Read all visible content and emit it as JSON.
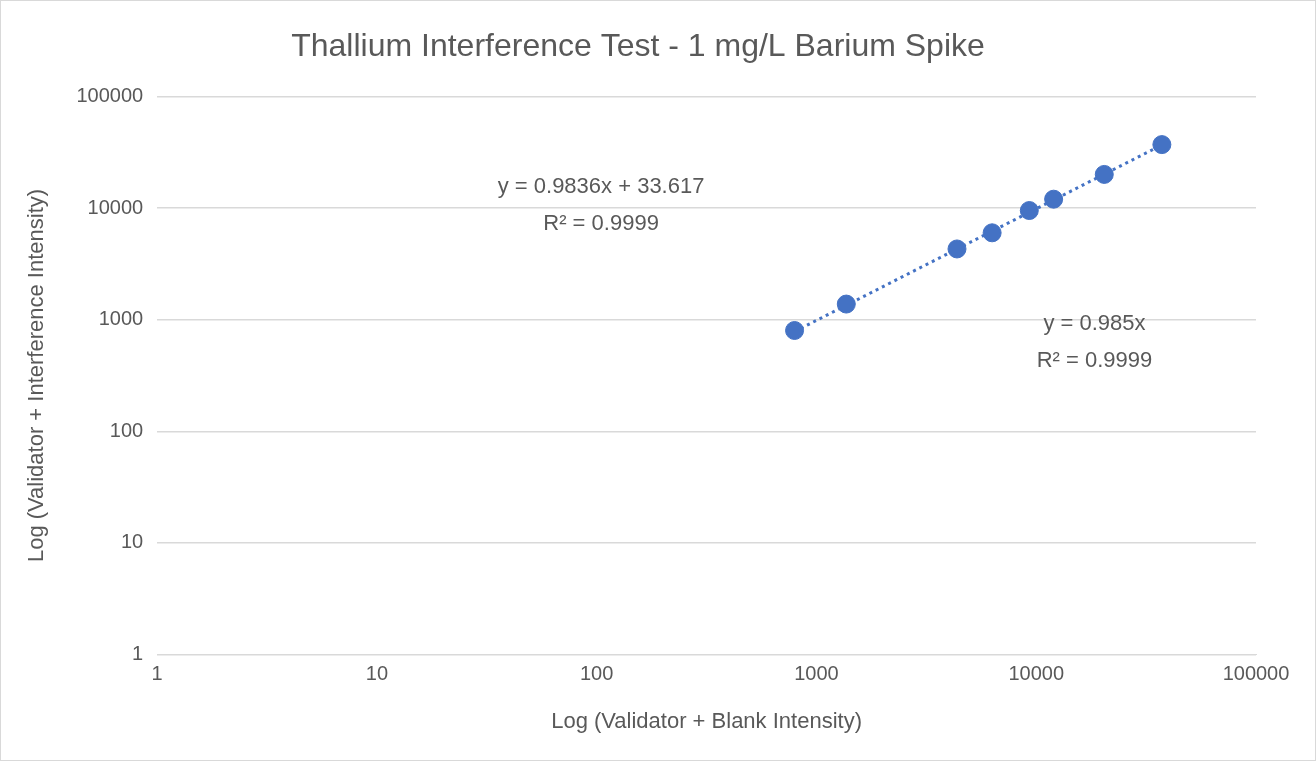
{
  "chart_data": {
    "type": "scatter",
    "title": "Thallium Interference Test - 1 mg/L Barium Spike",
    "x_label": "Log (Validator + Blank Intensity)",
    "y_label": "Log (Validator + Interference Intensity)",
    "log": true,
    "grid": "y",
    "xlim": [
      1,
      100000
    ],
    "xticks": [
      1,
      10,
      100,
      1000,
      10000,
      100000
    ],
    "ylim": [
      1,
      100000
    ],
    "yticks": [
      1,
      10,
      100,
      1000,
      10000,
      100000
    ],
    "series": [
      {
        "type": "scatter",
        "marker": "circle",
        "color": "#4472c4",
        "x": [
          795,
          1367,
          4360,
          6300,
          9300,
          12000,
          20400,
          37300
        ],
        "values": [
          800,
          1380,
          4300,
          6000,
          9500,
          12000,
          20000,
          37000
        ]
      },
      {
        "type": "line",
        "line_style": "dotted",
        "color": "#4472c4",
        "x": [
          795,
          37300
        ],
        "values": [
          783,
          36740
        ]
      }
    ],
    "annotations": [
      [
        "y = 0.9836x + 33.617",
        "R² = 0.9999"
      ],
      [
        "y = 0.985x",
        "R² = 0.9999"
      ]
    ]
  }
}
